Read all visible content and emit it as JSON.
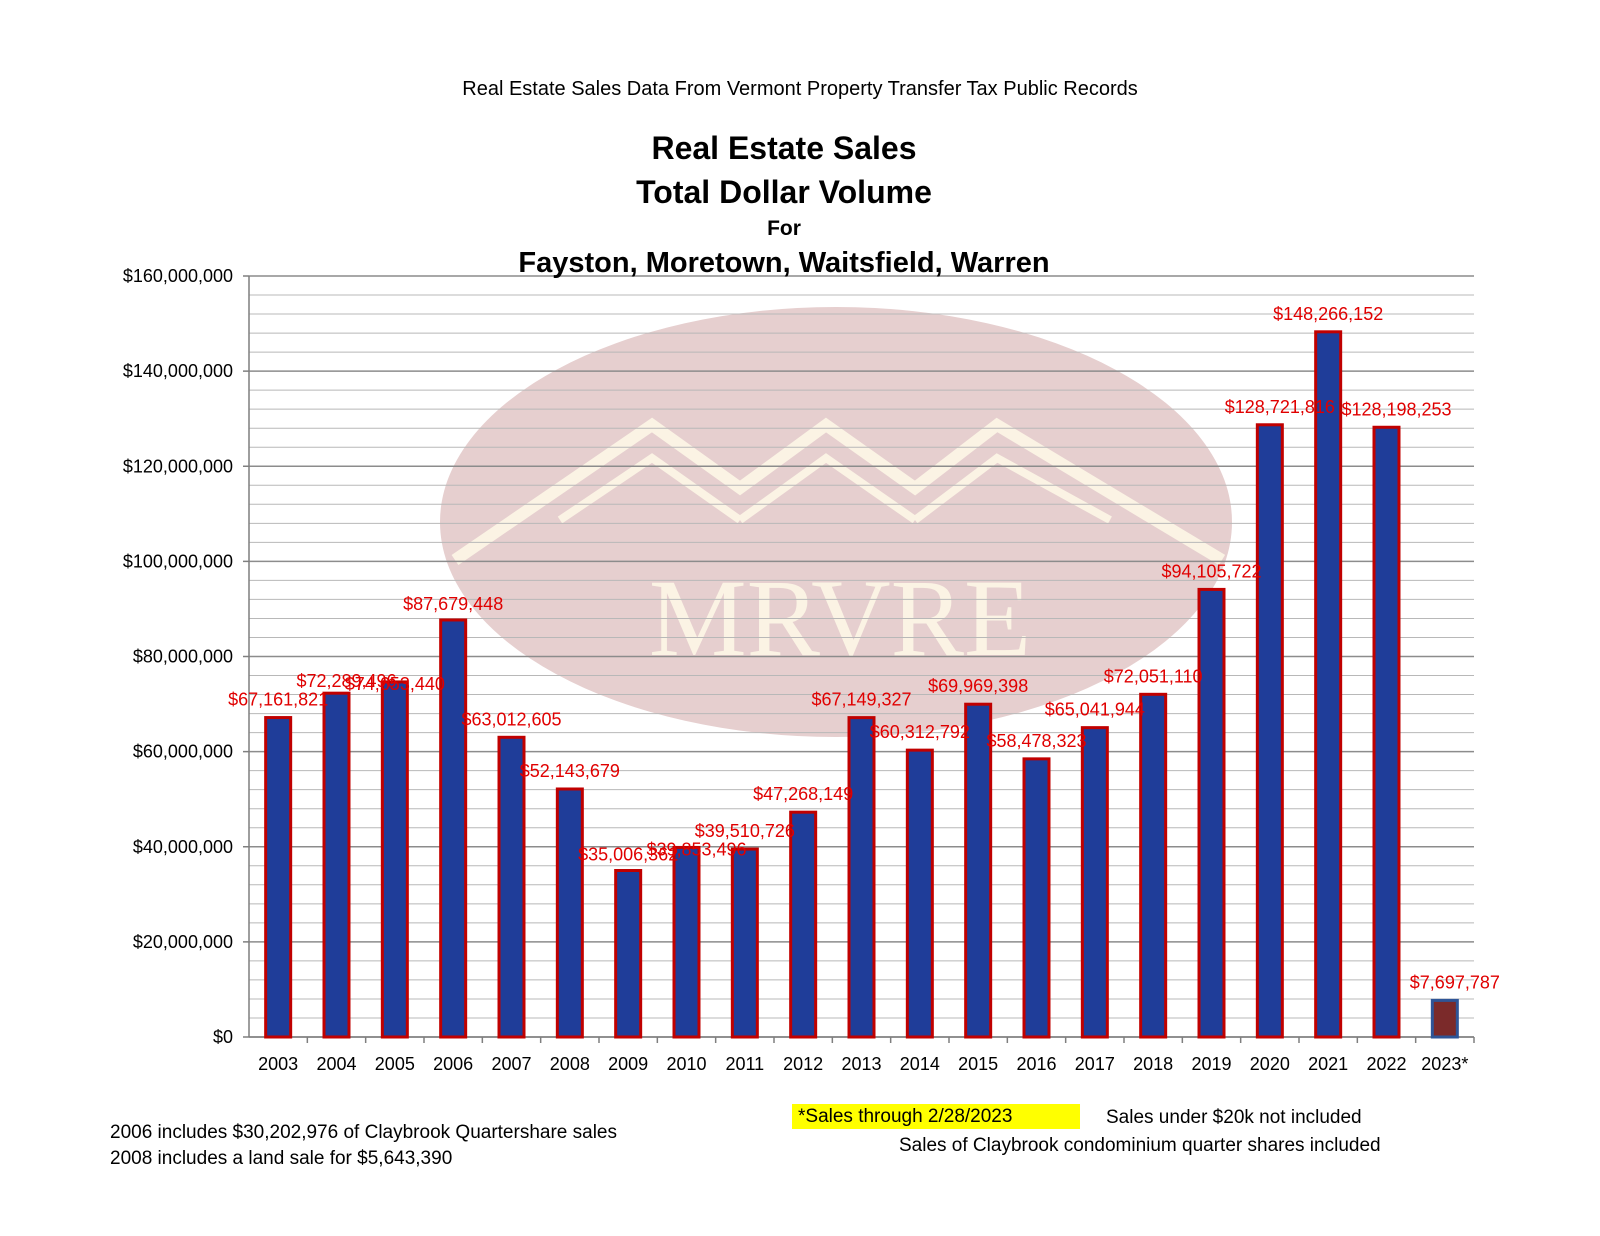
{
  "header": {
    "source_line": "Real Estate Sales Data From Vermont Property Transfer Tax Public Records"
  },
  "chart_data": {
    "type": "bar",
    "title": "Real Estate Sales",
    "subtitle_lines": [
      "Total Dollar Volume",
      "For",
      "Fayston, Moretown, Waitsfield, Warren"
    ],
    "categories": [
      "2003",
      "2004",
      "2005",
      "2006",
      "2007",
      "2008",
      "2009",
      "2010",
      "2011",
      "2012",
      "2013",
      "2014",
      "2015",
      "2016",
      "2017",
      "2018",
      "2019",
      "2020",
      "2021",
      "2022",
      "2023*"
    ],
    "values": [
      67161821,
      72289496,
      74653440,
      87679448,
      63012605,
      52143679,
      35006362,
      39853496,
      39510726,
      47268149,
      67149327,
      60312792,
      69969398,
      58478323,
      65041944,
      72051110,
      94105722,
      128721816,
      148266152,
      128198253,
      7697787
    ],
    "data_labels": [
      "$67,161,821",
      "$72,289,496",
      "$74,653,440",
      "$87,679,448",
      "$63,012,605",
      "$52,143,679",
      "$35,006,362",
      "$39,853,496",
      "$39,510,726",
      "$47,268,149",
      "$67,149,327",
      "$60,312,792",
      "$69,969,398",
      "$58,478,323",
      "$65,041,944",
      "$72,051,110",
      "$94,105,722",
      "$128,721,816",
      "$148,266,152",
      "$128,198,253",
      "$7,697,787"
    ],
    "y_ticks": [
      "$0",
      "$20,000,000",
      "$40,000,000",
      "$60,000,000",
      "$80,000,000",
      "$100,000,000",
      "$120,000,000",
      "$140,000,000",
      "$160,000,000"
    ],
    "ylim": [
      0,
      160000000
    ],
    "xlabel": "",
    "ylabel": "",
    "grid": true,
    "legend": "none",
    "colors": {
      "bar_fill": "#1f3d99",
      "bar_border": "#c00000",
      "last_bar_fill": "#7b2a2a",
      "last_bar_border": "#2f5597",
      "label": "#e00000"
    },
    "watermark": "MRVRE"
  },
  "footer": {
    "left_note_1": "2006 includes $30,202,976 of Claybrook Quartershare sales",
    "left_note_2": "2008 includes a land sale for $5,643,390",
    "highlight_note": "*Sales through 2/28/2023",
    "right_note_1": "Sales under $20k not included",
    "right_note_2": "Sales of Claybrook condominium quarter shares included"
  }
}
